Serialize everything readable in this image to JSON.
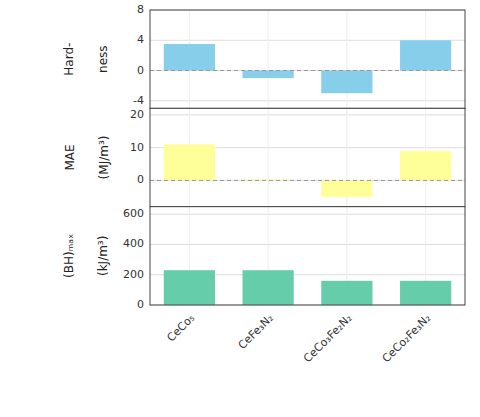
{
  "chart_data": [
    {
      "type": "bar",
      "categories": [
        "CeCo₅",
        "CeFe₃N₂",
        "CeCo₃Fe₂N₂",
        "CeCo₂Fe₃N₂"
      ],
      "values": [
        3.5,
        -1.0,
        -3.0,
        4.0
      ],
      "color": "#87CEEB",
      "ylim": [
        -5,
        8
      ],
      "yticks": [
        -4,
        0,
        4,
        8
      ],
      "ylabel": [
        "Hard-",
        "ness"
      ],
      "grid": true,
      "tick_labels": "y"
    },
    {
      "type": "bar",
      "categories": [
        "CeCo₅",
        "CeFe₃N₂",
        "CeCo₃Fe₂N₂",
        "CeCo₂Fe₃N₂"
      ],
      "values": [
        11.0,
        0.3,
        -5.0,
        9.0
      ],
      "color": "#FFFF99",
      "ylim": [
        -8,
        22
      ],
      "yticks": [
        0,
        10,
        20
      ],
      "ylabel": [
        "MAE",
        "(MJ/m³)"
      ],
      "grid": true,
      "tick_labels": "y"
    },
    {
      "type": "bar",
      "categories": [
        "CeCo₅",
        "CeFe₃N₂",
        "CeCo₃Fe₂N₂",
        "CeCo₂Fe₃N₂"
      ],
      "values": [
        230,
        230,
        160,
        160
      ],
      "color": "#66CDAA",
      "ylim": [
        0,
        650
      ],
      "yticks": [
        0,
        200,
        400,
        600
      ],
      "ylabel": [
        "(BH)ₘₐₓ",
        "(kJ/m³)"
      ],
      "grid": true
    }
  ]
}
